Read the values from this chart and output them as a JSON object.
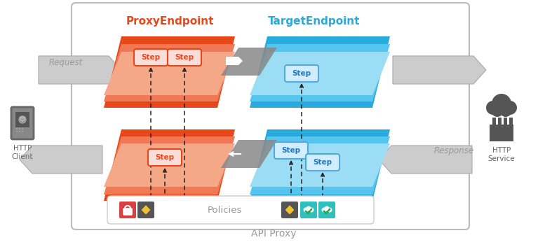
{
  "title": "API Proxy",
  "proxy_label": "ProxyEndpoint",
  "target_label": "TargetEndpoint",
  "proxy_dark": "#E8471A",
  "proxy_mid": "#F07855",
  "proxy_light": "#F4A888",
  "target_dark": "#29AADC",
  "target_mid": "#55C4EE",
  "target_light": "#9ADDF5",
  "gray_dark": "#888888",
  "gray_mid": "#AAAAAA",
  "gray_light": "#CCCCCC",
  "bg": "#FFFFFF",
  "frame_border": "#BBBBBB",
  "dashed": "#222222",
  "step_text_proxy": "#E8471A",
  "step_border_proxy": "#E8471A",
  "step_bg_proxy": "#FDDDD8",
  "step_text_target": "#2277BB",
  "step_border_target": "#55AADD",
  "step_bg_target": "#D0EEFF",
  "icon_red": "#D94040",
  "icon_gray": "#555555",
  "icon_teal": "#2FBFBF",
  "icon_yellow": "#F0C030",
  "policies_text": "Policies",
  "request_text": "Request",
  "response_text": "Response",
  "http_client": "HTTP\nClient",
  "http_service": "HTTP\nService"
}
